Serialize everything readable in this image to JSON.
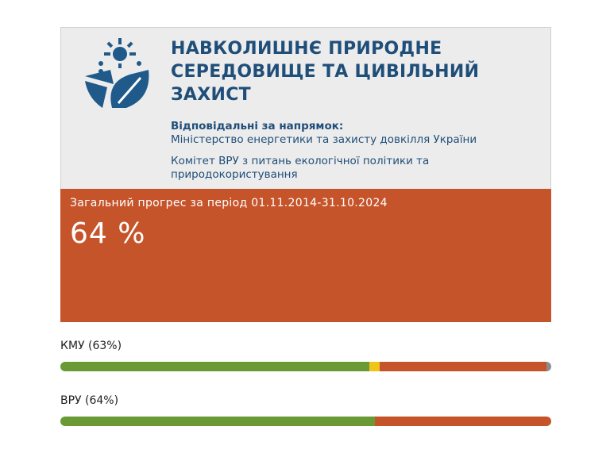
{
  "header": {
    "title": "НАВКОЛИШНЄ ПРИРОДНЕ СЕРЕДОВИЩЕ ТА ЦИВІЛЬНИЙ ЗАХИСТ",
    "responsible_label": "Відповідальні за напрямок:",
    "responsible": [
      "Міністерство енергетики та захисту довкілля України",
      "Комітет ВРУ з питань екологічної політики та природокористування"
    ]
  },
  "progress": {
    "label": "Загальний прогрес за період 01.11.2014-31.10.2024",
    "value": "64 %"
  },
  "bars": [
    {
      "label": "КМУ (63%)",
      "segments": [
        {
          "color": "#6a9a35",
          "value": 63
        },
        {
          "color": "#f0c419",
          "value": 2
        },
        {
          "color": "#c6542b",
          "value": 34
        },
        {
          "color": "#8c8c8c",
          "value": 1
        }
      ]
    },
    {
      "label": "ВРУ (64%)",
      "segments": [
        {
          "color": "#6a9a35",
          "value": 64
        },
        {
          "color": "#c6542b",
          "value": 36
        }
      ]
    }
  ]
}
